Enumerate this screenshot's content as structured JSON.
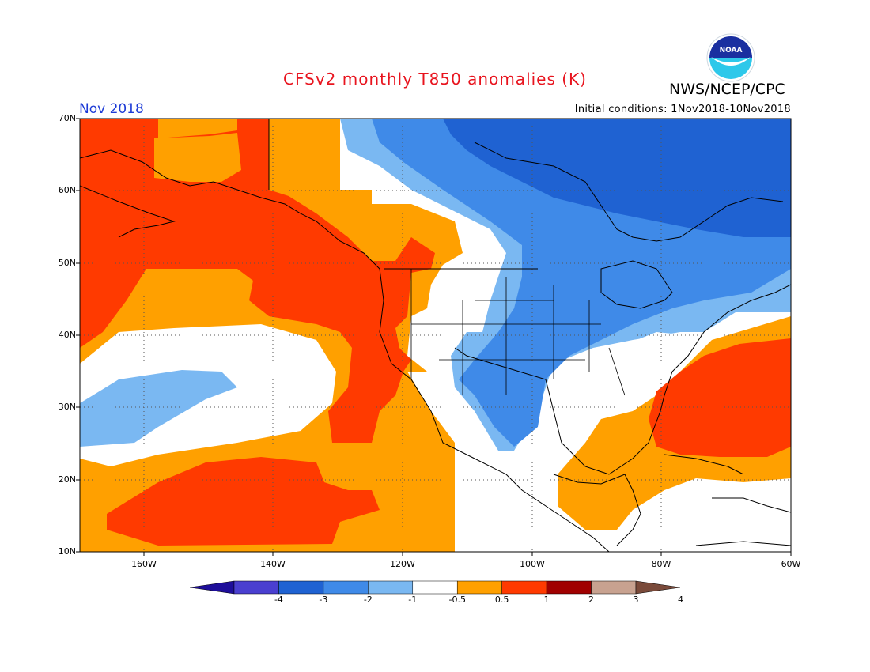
{
  "header": {
    "title": "CFSv2 monthly T850 anomalies (K)",
    "period": "Nov 2018",
    "agency": "NWS/NCEP/CPC",
    "initial_conditions": "Initial conditions: 1Nov2018-10Nov2018",
    "logo_text": "NOAA"
  },
  "map": {
    "lat_labels": [
      "70N",
      "60N",
      "50N",
      "40N",
      "30N",
      "20N",
      "10N"
    ],
    "lon_labels": [
      "160W",
      "140W",
      "120W",
      "100W",
      "80W",
      "60W"
    ],
    "lat_range": [
      10,
      70
    ],
    "lon_range": [
      -170,
      -60
    ],
    "grid": "dotted"
  },
  "colorbar": {
    "labels": [
      "-4",
      "-3",
      "-2",
      "-1",
      "-0.5",
      "0.5",
      "1",
      "2",
      "3",
      "4"
    ],
    "colors": [
      "#1e0e9a",
      "#4a3fd0",
      "#1f62d2",
      "#3f8ae8",
      "#7ab8f2",
      "#ffffff",
      "#ffa000",
      "#ff3a00",
      "#a00000",
      "#c8a290",
      "#7a4a3a"
    ]
  },
  "palette": {
    "deep_blue": "#1f62d2",
    "mid_blue": "#3f8ae8",
    "light_blue": "#7ab8f2",
    "neutral": "#ffffff",
    "orange": "#ffa000",
    "red_orange": "#ff3a00",
    "title_red": "#e8141e",
    "period_blue": "#1d3bd6"
  }
}
